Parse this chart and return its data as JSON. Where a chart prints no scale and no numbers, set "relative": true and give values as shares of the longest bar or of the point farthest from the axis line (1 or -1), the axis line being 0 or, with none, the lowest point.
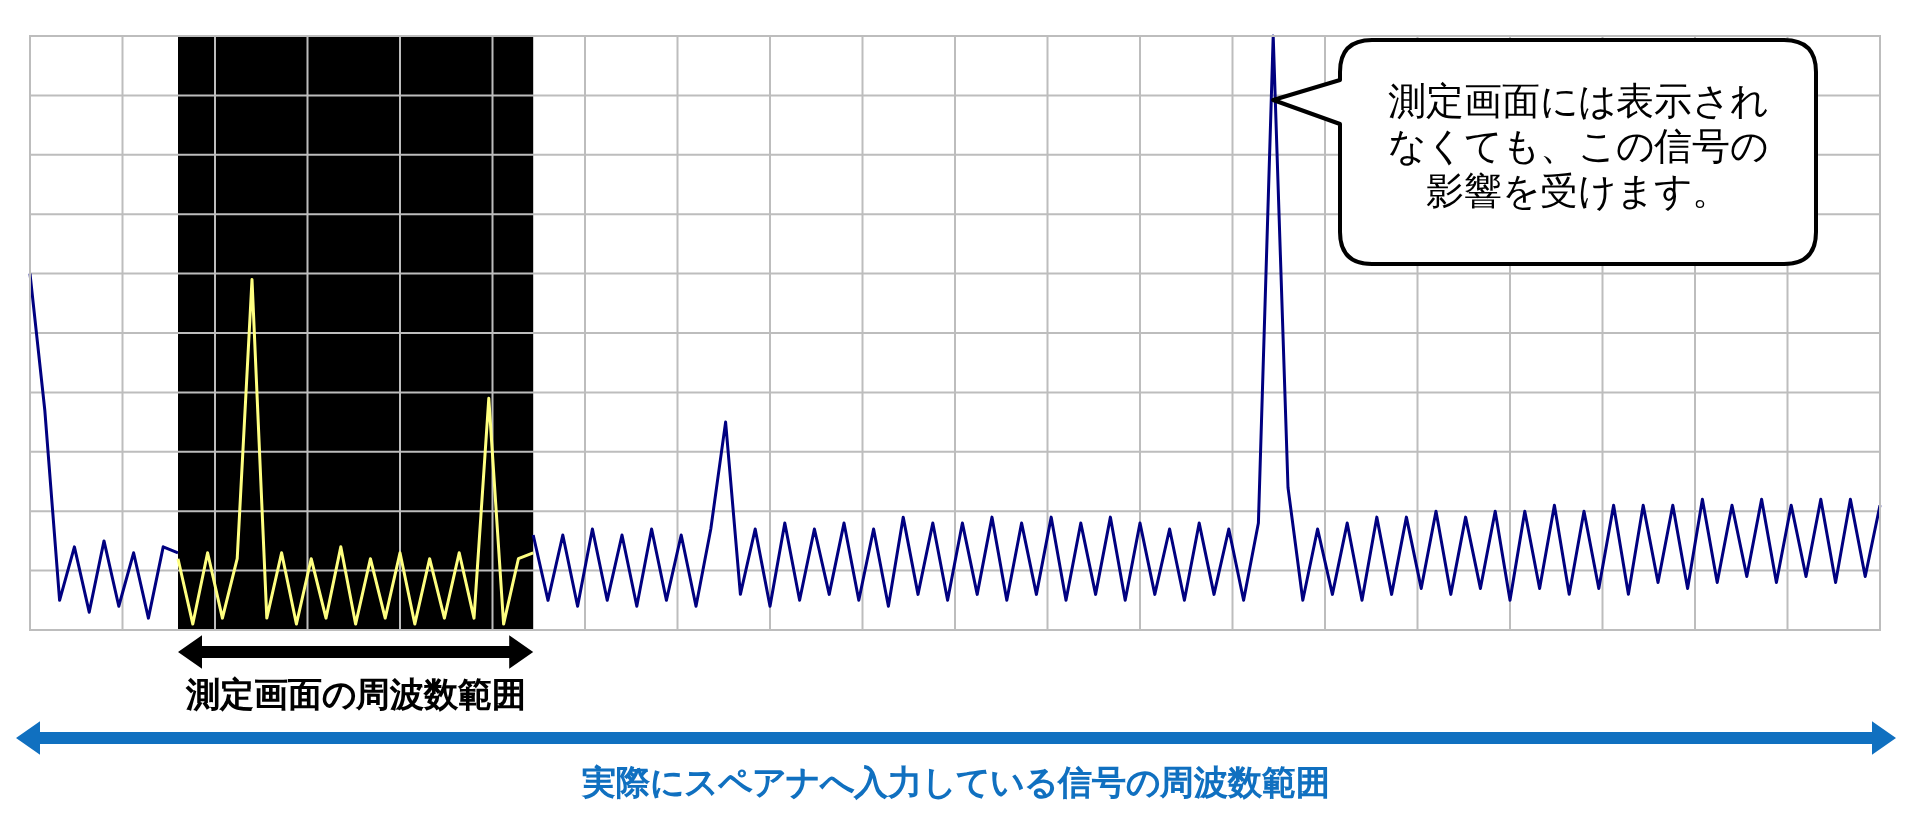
{
  "chart_data": {
    "type": "line",
    "relative": true,
    "grid": true,
    "categories": [
      null,
      null,
      null,
      null,
      null,
      null,
      null,
      null,
      null,
      null,
      null,
      null,
      null,
      null,
      null,
      null,
      null,
      null,
      null,
      null,
      null,
      null,
      null,
      null,
      null,
      null,
      null,
      null,
      null,
      null,
      null,
      null,
      null,
      null,
      null,
      null,
      null,
      null,
      null,
      null,
      null,
      null,
      null,
      null,
      null,
      null,
      null,
      null,
      null,
      null,
      null,
      null,
      null,
      null,
      null,
      null,
      null,
      null,
      null,
      null,
      null,
      null,
      null,
      null,
      null,
      null,
      null,
      null,
      null,
      null,
      null,
      null,
      null,
      null,
      null,
      null,
      null,
      null,
      null,
      null,
      null,
      null,
      null,
      null,
      null,
      null,
      null,
      null,
      null,
      null,
      null,
      null,
      null,
      null,
      null,
      null,
      null,
      null,
      null,
      null,
      null,
      null,
      null,
      null,
      null,
      null,
      null,
      null,
      null,
      null,
      null,
      null,
      null,
      null,
      null,
      null,
      null,
      null,
      null,
      null,
      null,
      null,
      null,
      null,
      null,
      null
    ],
    "series": [
      {
        "color": "#000080",
        "values": [
          0.6,
          0.37,
          0.05,
          0.14,
          0.03,
          0.15,
          0.04,
          0.13,
          0.02,
          0.14,
          0.13,
          null,
          null,
          null,
          null,
          null,
          null,
          null,
          null,
          null,
          null,
          null,
          null,
          null,
          null,
          null,
          null,
          null,
          null,
          null,
          null,
          null,
          null,
          null,
          0.16,
          0.05,
          0.16,
          0.04,
          0.17,
          0.05,
          0.16,
          0.04,
          0.17,
          0.05,
          0.16,
          0.04,
          0.17,
          0.35,
          0.06,
          0.17,
          0.04,
          0.18,
          0.05,
          0.17,
          0.06,
          0.18,
          0.05,
          0.17,
          0.04,
          0.19,
          0.06,
          0.18,
          0.05,
          0.18,
          0.06,
          0.19,
          0.05,
          0.18,
          0.06,
          0.19,
          0.05,
          0.18,
          0.06,
          0.19,
          0.05,
          0.18,
          0.06,
          0.17,
          0.05,
          0.18,
          0.06,
          0.17,
          0.05,
          0.18,
          1.0,
          0.24,
          0.05,
          0.17,
          0.06,
          0.18,
          0.05,
          0.19,
          0.06,
          0.19,
          0.07,
          0.2,
          0.06,
          0.19,
          0.07,
          0.2,
          0.05,
          0.2,
          0.07,
          0.21,
          0.06,
          0.2,
          0.07,
          0.21,
          0.06,
          0.21,
          0.08,
          0.21,
          0.07,
          0.22,
          0.08,
          0.21,
          0.09,
          0.22,
          0.08,
          0.21,
          0.09,
          0.22,
          0.08,
          0.22,
          0.09,
          0.21
        ]
      },
      {
        "color": "#ffff80",
        "values": [
          null,
          null,
          null,
          null,
          null,
          null,
          null,
          null,
          null,
          null,
          0.12,
          0.01,
          0.13,
          0.02,
          0.12,
          0.59,
          0.02,
          0.13,
          0.01,
          0.12,
          0.02,
          0.14,
          0.01,
          0.12,
          0.02,
          0.13,
          0.01,
          0.12,
          0.02,
          0.13,
          0.02,
          0.39,
          0.01,
          0.12,
          0.13,
          null,
          null,
          null,
          null,
          null,
          null,
          null,
          null,
          null,
          null,
          null,
          null,
          null,
          null,
          null,
          null,
          null,
          null,
          null,
          null,
          null,
          null,
          null,
          null,
          null,
          null,
          null,
          null,
          null,
          null,
          null,
          null,
          null,
          null,
          null,
          null,
          null,
          null,
          null,
          null,
          null,
          null,
          null,
          null,
          null,
          null,
          null,
          null,
          null,
          null,
          null,
          null,
          null,
          null,
          null,
          null,
          null,
          null,
          null,
          null,
          null,
          null,
          null,
          null,
          null,
          null,
          null,
          null,
          null,
          null,
          null,
          null,
          null,
          null,
          null,
          null,
          null,
          null,
          null,
          null,
          null,
          null,
          null,
          null,
          null,
          null,
          null,
          null,
          null,
          null,
          null
        ]
      }
    ],
    "annotations": [
      "測定画面には表示されなくても、この信号の影響を受けます。",
      "測定画面の周波数範囲",
      "実際にスペアナへ入力している信号の周波数範囲"
    ]
  }
}
